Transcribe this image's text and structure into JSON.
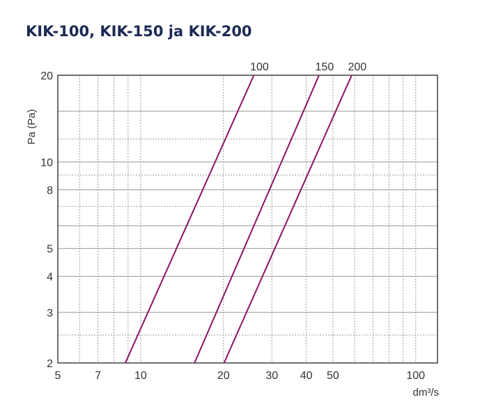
{
  "chart_data": {
    "type": "line",
    "title": "KIK-100, KIK-150 ja KIK-200",
    "xlabel": "dm³/s",
    "ylabel": "Pa (Pa)",
    "x_scale": "log",
    "y_scale": "log",
    "xlim": [
      5,
      120
    ],
    "ylim": [
      2,
      20
    ],
    "x_ticks": [
      5,
      7,
      10,
      20,
      30,
      40,
      50,
      100
    ],
    "x_tick_labels": [
      "5",
      "7",
      "10",
      "20",
      "30",
      "40",
      "50",
      "100"
    ],
    "y_ticks": [
      2,
      3,
      4,
      5,
      8,
      10,
      20
    ],
    "y_tick_labels": [
      "2",
      "3",
      "4",
      "5",
      "8",
      "10",
      "20"
    ],
    "x_grid": [
      6,
      7,
      8,
      9,
      10,
      20,
      30,
      40,
      50,
      60,
      70,
      80,
      90,
      100
    ],
    "y_grid_solid": [
      3,
      4,
      5,
      6,
      8,
      10,
      15
    ],
    "y_grid_dotted": [
      2.5,
      7,
      9,
      12
    ],
    "grid": true,
    "colors": {
      "line": "#8b1464",
      "grid": "#999999",
      "frame": "#222222",
      "title": "#1b2a55"
    },
    "series": [
      {
        "name": "100",
        "x": [
          8.8,
          25.8
        ],
        "y": [
          2,
          20
        ]
      },
      {
        "name": "150",
        "x": [
          15.7,
          44.5
        ],
        "y": [
          2,
          20
        ]
      },
      {
        "name": "200",
        "x": [
          20.1,
          58.5
        ],
        "y": [
          2,
          20
        ]
      }
    ]
  }
}
